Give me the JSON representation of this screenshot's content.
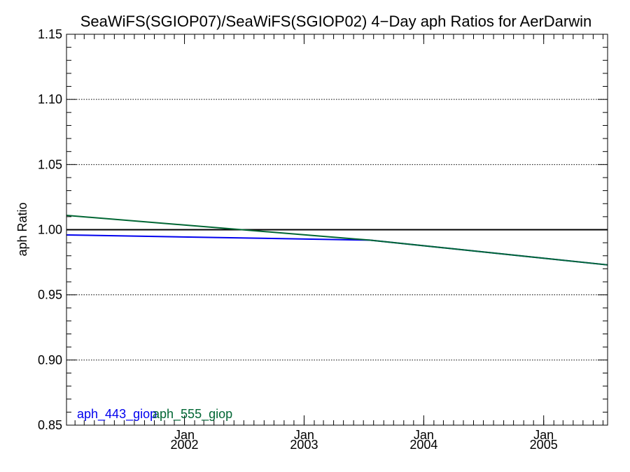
{
  "chart_data": {
    "type": "line",
    "title": "SeaWiFS(SGIOP07)/SeaWiFS(SGIOP02) 4−Day aph Ratios for AerDarwin",
    "xlabel": "",
    "ylabel": "aph Ratio",
    "ylim": [
      0.85,
      1.15
    ],
    "xlim": [
      "2001-01-06",
      "2005-07-15"
    ],
    "yticks": [
      "0.85",
      "0.90",
      "0.95",
      "1.00",
      "1.05",
      "1.10",
      "1.15"
    ],
    "xticks": [
      {
        "date": "2002-01-01",
        "month": "Jan",
        "year": "2002"
      },
      {
        "date": "2003-01-01",
        "month": "Jan",
        "year": "2003"
      },
      {
        "date": "2004-01-01",
        "month": "Jan",
        "year": "2004"
      },
      {
        "date": "2005-01-01",
        "month": "Jan",
        "year": "2005"
      }
    ],
    "grid": "dotted horizontal at major y ticks",
    "reference_line": 1.0,
    "legend_position": "bottom-left",
    "series": [
      {
        "name": "aph_443_giop",
        "color": "#0000ee",
        "x": [
          "2001-01-06",
          "2003-07-20",
          "2005-07-15"
        ],
        "y": [
          0.996,
          0.992,
          0.973
        ]
      },
      {
        "name": "aph_555_giop",
        "color": "#006633",
        "x": [
          "2001-01-06",
          "2003-07-20",
          "2005-07-15"
        ],
        "y": [
          1.011,
          0.992,
          0.973
        ]
      }
    ]
  }
}
